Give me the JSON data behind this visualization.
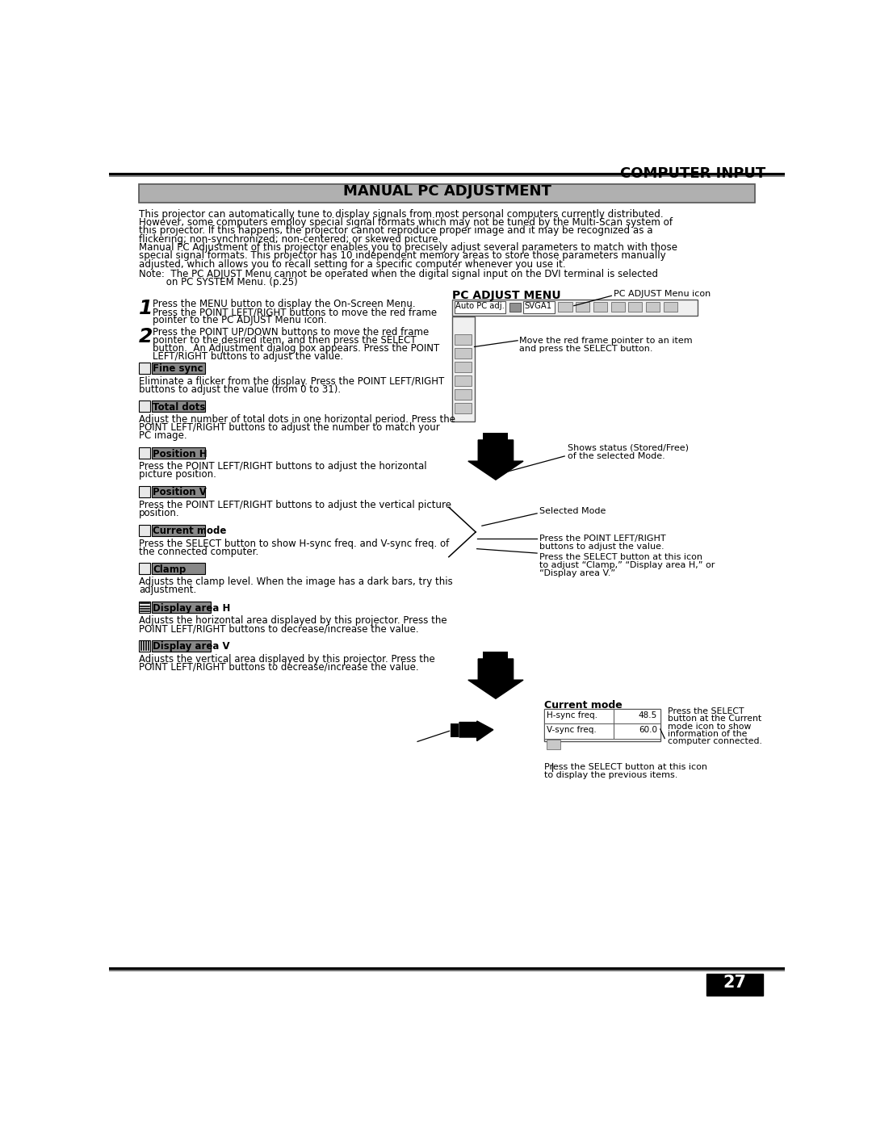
{
  "page_bg": "#ffffff",
  "header_text": "COMPUTER INPUT",
  "title_box_text": "MANUAL PC ADJUSTMENT",
  "body_text_1": "This projector can automatically tune to display signals from most personal computers currently distributed.\nHowever, some computers employ special signal formats which may not be tuned by the Multi-Scan system of\nthis projector. If this happens, the projector cannot reproduce proper image and it may be recognized as a\nflickering; non-synchronized; non-centered; or skewed picture.\nManual PC Adjustment of this projector enables you to precisely adjust several parameters to match with those\nspecial signal formats. This projector has 10 independent memory areas to store those parameters manually\nadjusted, which allows you to recall setting for a specific computer whenever you use it.",
  "note_text": "Note:  The PC ADJUST Menu cannot be operated when the digital signal input on the DVI terminal is selected\n         on PC SYSTEM Menu. (p.25)",
  "step1_num": "1",
  "step1_text": "Press the MENU button to display the On-Screen Menu.\nPress the POINT LEFT/RIGHT buttons to move the red frame\npointer to the PC ADJUST Menu icon.",
  "step2_num": "2",
  "step2_text": "Press the POINT UP/DOWN buttons to move the red frame\npointer to the desired item, and then press the SELECT\nbutton.  An Adjustment dialog box appears. Press the POINT\nLEFT/RIGHT buttons to adjust the value.",
  "fine_sync_label": "Fine sync",
  "fine_sync_text": "Eliminate a flicker from the display. Press the POINT LEFT/RIGHT\nbuttons to adjust the value (from 0 to 31).",
  "total_dots_label": "Total dots",
  "total_dots_text": "Adjust the number of total dots in one horizontal period. Press the\nPOINT LEFT/RIGHT buttons to adjust the number to match your\nPC image.",
  "position_h_label": "Position H",
  "position_h_text": "Press the POINT LEFT/RIGHT buttons to adjust the horizontal\npicture position.",
  "position_v_label": "Position V",
  "position_v_text": "Press the POINT LEFT/RIGHT buttons to adjust the vertical picture\nposition.",
  "current_mode_label": "Current mode",
  "current_mode_text": "Press the SELECT button to show H-sync freq. and V-sync freq. of\nthe connected computer.",
  "clamp_label": "Clamp",
  "clamp_text": "Adjusts the clamp level. When the image has a dark bars, try this\nadjustment.",
  "display_h_label": "Display area H",
  "display_h_text": "Adjusts the horizontal area displayed by this projector. Press the\nPOINT LEFT/RIGHT buttons to decrease/increase the value.",
  "display_v_label": "Display area V",
  "display_v_text": "Adjusts the vertical area displayed by this projector. Press the\nPOINT LEFT/RIGHT buttons to decrease/increase the value.",
  "pc_adjust_menu_title": "PC ADJUST MENU",
  "pc_adjust_annotation1": "PC ADJUST Menu icon",
  "pc_adjust_annotation2": "Move the red frame pointer to an item\nand press the SELECT button.",
  "arrow1_annotation": "Shows status (Stored/Free)\nof the selected Mode.",
  "selected_mode_annotation": "Selected Mode",
  "point_lr_annotation": "Press the POINT LEFT/RIGHT\nbuttons to adjust the value.",
  "select_icon_annotation": "Press the SELECT button at this icon\nto adjust “Clamp,” “Display area H,” or\n“Display area V.”",
  "current_mode_box_title": "Current mode",
  "hsync_label": "H-sync freq.",
  "hsync_value": "48.5",
  "vsync_label": "V-sync freq.",
  "vsync_value": "60.0",
  "select_annotation3": "Press the SELECT\nbutton at the Current\nmode icon to show\ninformation of the\ncomputer connected.",
  "select_annotation4": "Press the SELECT button at this icon\nto display the previous items.",
  "page_number": "27"
}
